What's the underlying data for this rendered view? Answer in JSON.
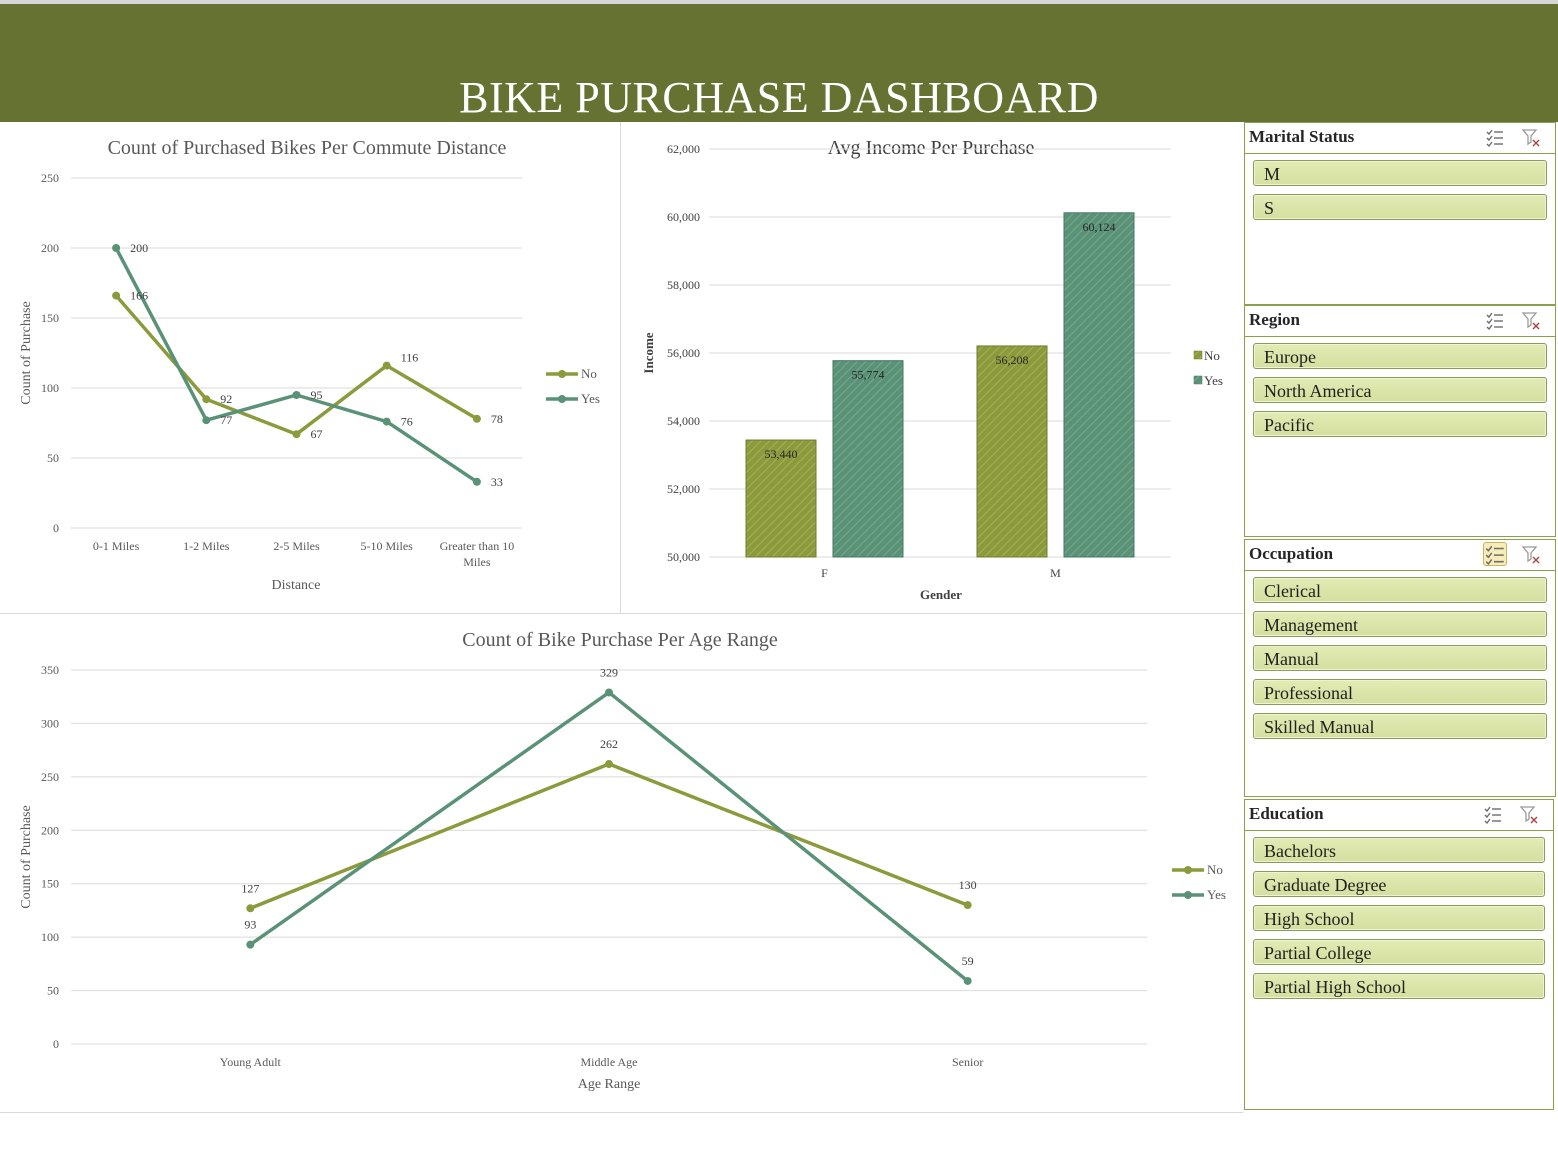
{
  "dashboard": {
    "title": "BIKE PURCHASE DASHBOARD"
  },
  "colors": {
    "banner": "#667231",
    "no": "#8c9a3c",
    "yes": "#5a9278",
    "slicer_item": "#d8e2a7"
  },
  "legend": {
    "no": "No",
    "yes": "Yes"
  },
  "slicers": [
    {
      "title": "Marital Status",
      "items": [
        "M",
        "S"
      ]
    },
    {
      "title": "Region",
      "items": [
        "Europe",
        "North America",
        "Pacific"
      ]
    },
    {
      "title": "Occupation",
      "items": [
        "Clerical",
        "Management",
        "Manual",
        "Professional",
        "Skilled Manual"
      ]
    },
    {
      "title": "Education",
      "items": [
        "Bachelors",
        "Graduate Degree",
        "High School",
        "Partial College",
        "Partial High School"
      ]
    }
  ],
  "slicer_icons": {
    "multiselect": "multi-select-icon",
    "clear": "clear-filter-icon"
  },
  "chart_data": [
    {
      "type": "line",
      "title": "Count of  Purchased Bikes Per Commute Distance",
      "xlabel": "Distance",
      "ylabel": "Count of Purchase",
      "categories": [
        "0-1 Miles",
        "1-2 Miles",
        "2-5 Miles",
        "5-10 Miles",
        "Greater than 10 Miles"
      ],
      "series": [
        {
          "name": "No",
          "values": [
            166,
            92,
            67,
            116,
            78
          ]
        },
        {
          "name": "Yes",
          "values": [
            200,
            77,
            95,
            76,
            33
          ]
        }
      ],
      "ylim": [
        0,
        250
      ],
      "yticks": [
        0,
        50,
        100,
        150,
        200,
        250
      ],
      "grid": true,
      "legend": "right"
    },
    {
      "type": "bar",
      "title": "Avg Income Per Purchase",
      "xlabel": "Gender",
      "ylabel": "Income",
      "categories": [
        "F",
        "M"
      ],
      "series": [
        {
          "name": "No",
          "values": [
            53440,
            56208
          ]
        },
        {
          "name": "Yes",
          "values": [
            55774,
            60124
          ]
        }
      ],
      "data_labels": [
        [
          "53,440",
          "56,208"
        ],
        [
          "55,774",
          "60,124"
        ]
      ],
      "ylim": [
        50000,
        62000
      ],
      "yticks": [
        "50,000",
        "52,000",
        "54,000",
        "56,000",
        "58,000",
        "60,000",
        "62,000"
      ],
      "grid": true,
      "legend": "right"
    },
    {
      "type": "line",
      "title": "Count of  Bike Purchase Per Age Range",
      "xlabel": "Age Range",
      "ylabel": "Count of Purchase",
      "categories": [
        "Young Adult",
        "Middle Age",
        "Senior"
      ],
      "series": [
        {
          "name": "No",
          "values": [
            127,
            262,
            130
          ]
        },
        {
          "name": "Yes",
          "values": [
            93,
            329,
            59
          ]
        }
      ],
      "ylim": [
        0,
        350
      ],
      "yticks": [
        0,
        50,
        100,
        150,
        200,
        250,
        300,
        350
      ],
      "grid": true,
      "legend": "right"
    }
  ]
}
